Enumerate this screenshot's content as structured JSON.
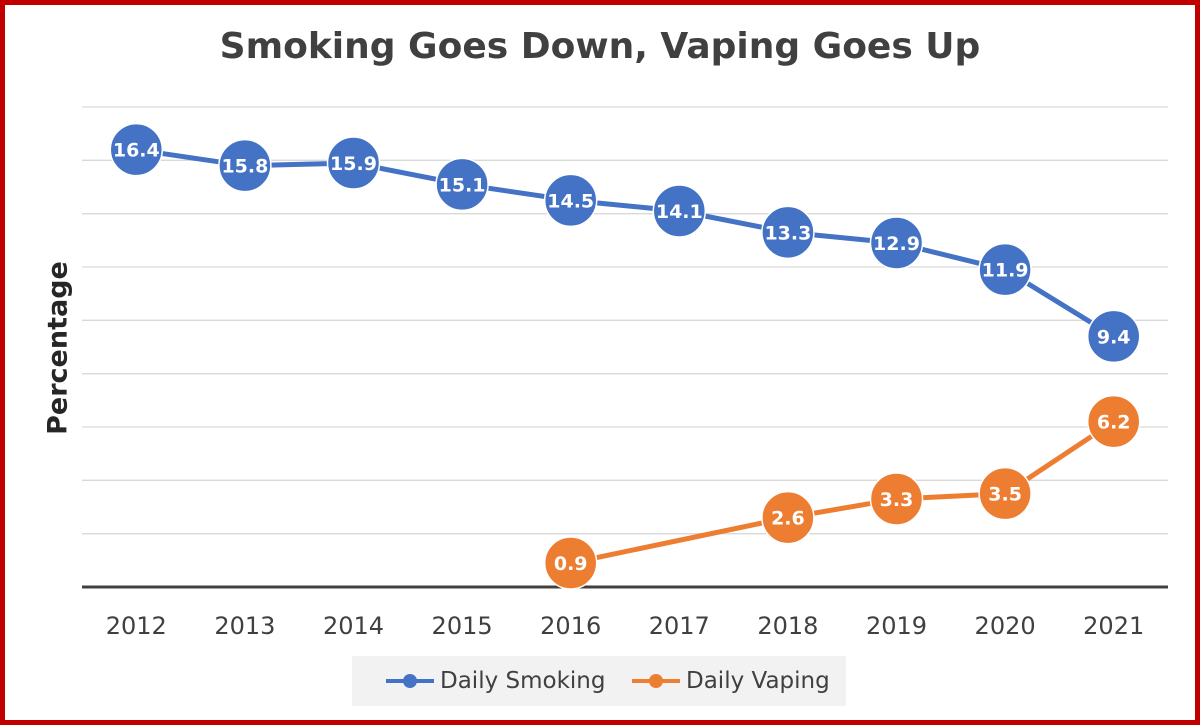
{
  "colors": {
    "frame": "#c00000",
    "smoking": "#4472c4",
    "vaping": "#ed7d31",
    "grid": "#d9d9d9",
    "axis": "#404040"
  },
  "chart_data": {
    "type": "line",
    "title": "Smoking Goes Down, Vaping Goes Up",
    "xlabel": "",
    "ylabel": "Percentage",
    "categories": [
      "2012",
      "2013",
      "2014",
      "2015",
      "2016",
      "2017",
      "2018",
      "2019",
      "2020",
      "2021"
    ],
    "ylim": [
      0,
      18
    ],
    "grid": true,
    "legend_position": "bottom",
    "series": [
      {
        "name": "Daily Smoking",
        "color": "#4472c4",
        "values": [
          16.4,
          15.8,
          15.9,
          15.1,
          14.5,
          14.1,
          13.3,
          12.9,
          11.9,
          9.4
        ],
        "data_labels": [
          "16.4",
          "15.8",
          "15.9",
          "15.1",
          "14.5",
          "14.1",
          "13.3",
          "12.9",
          "11.9",
          "9.4"
        ]
      },
      {
        "name": "Daily Vaping",
        "color": "#ed7d31",
        "values": [
          null,
          null,
          null,
          null,
          0.9,
          null,
          2.6,
          3.3,
          3.5,
          6.2
        ],
        "data_labels": [
          null,
          null,
          null,
          null,
          "0.9",
          null,
          "2.6",
          "3.3",
          "3.5",
          "6.2"
        ]
      }
    ]
  }
}
